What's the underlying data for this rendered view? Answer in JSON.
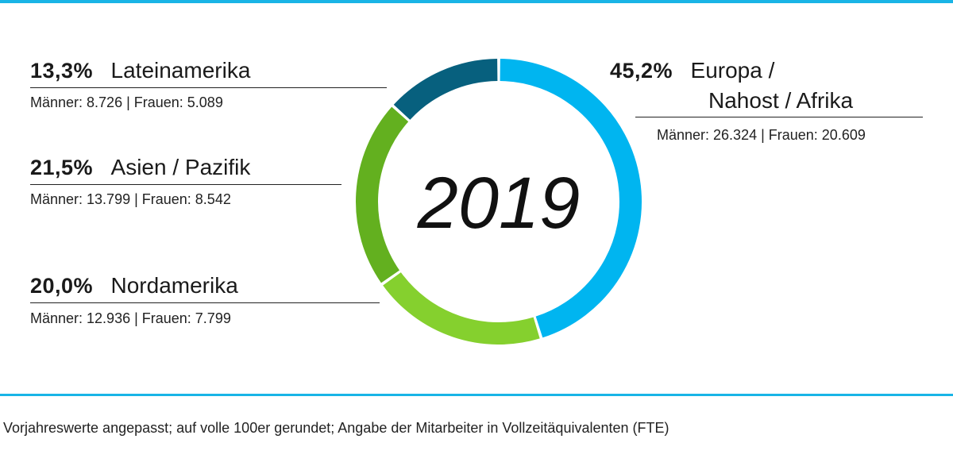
{
  "chart_data": {
    "type": "pie",
    "center_label": "2019",
    "series": [
      {
        "name": "Europa / Nahost / Afrika",
        "name_lines": [
          "Europa /",
          "Nahost / Afrika"
        ],
        "value": 45.2,
        "value_label": "45,2%",
        "detail": "Männer: 26.324 | Frauen: 20.609",
        "color": "#00b5f0"
      },
      {
        "name": "Nordamerika",
        "value": 20.0,
        "value_label": "20,0%",
        "detail": "Männer: 12.936 | Frauen: 7.799",
        "color": "#85d02e"
      },
      {
        "name": "Asien / Pazifik",
        "value": 21.5,
        "value_label": "21,5%",
        "detail": "Männer: 13.799 | Frauen: 8.542",
        "color": "#63b01f"
      },
      {
        "name": "Lateinamerika",
        "value": 13.3,
        "value_label": "13,3%",
        "detail": "Männer: 8.726 | Frauen: 5.089",
        "color": "#07607e"
      }
    ]
  },
  "accent_color": "#19b4e6",
  "footnote": "Vorjahreswerte angepasst; auf volle 100er gerundet; Angabe der Mitarbeiter in Vollzeitäquivalenten (FTE)"
}
